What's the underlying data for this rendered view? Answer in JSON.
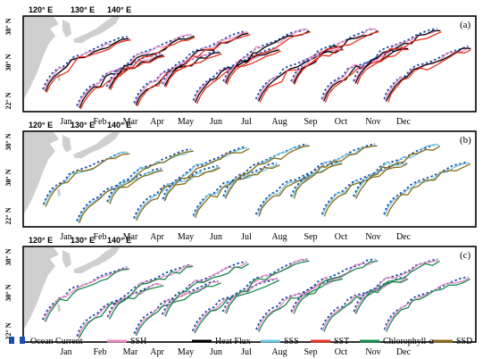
{
  "longitudes": [
    "120° E",
    "130° E",
    "140° E"
  ],
  "latitudes": [
    "38° N",
    "30° N",
    "22° N"
  ],
  "months": [
    "Jan",
    "Feb",
    "Mar",
    "Apr",
    "May",
    "Jun",
    "Jul",
    "Aug",
    "Sep",
    "Oct",
    "Nov",
    "Dec"
  ],
  "panels": [
    {
      "label": "(a)",
      "variables": [
        "Ocean Current",
        "SSH",
        "Heat Flux",
        "SST"
      ]
    },
    {
      "label": "(b)",
      "variables": [
        "Ocean Current",
        "SSS",
        "SSD"
      ]
    },
    {
      "label": "(c)",
      "variables": [
        "Ocean Current",
        "SSH",
        "Chlorophyll-α"
      ]
    }
  ],
  "legend": [
    {
      "name": "Ocean Current",
      "color": "#1f4fa8",
      "style": "dashed"
    },
    {
      "name": "SSH",
      "color": "#e889c3",
      "style": "solid"
    },
    {
      "name": "Heat Flux",
      "color": "#000000",
      "style": "solid"
    },
    {
      "name": "SSS",
      "color": "#6ec6e0",
      "style": "solid"
    },
    {
      "name": "SST",
      "color": "#e8321e",
      "style": "solid"
    },
    {
      "name": "Chlorophyll-α",
      "color": "#168a4c",
      "style": "solid"
    },
    {
      "name": "SSD",
      "color": "#8a6a12",
      "style": "solid"
    }
  ]
}
